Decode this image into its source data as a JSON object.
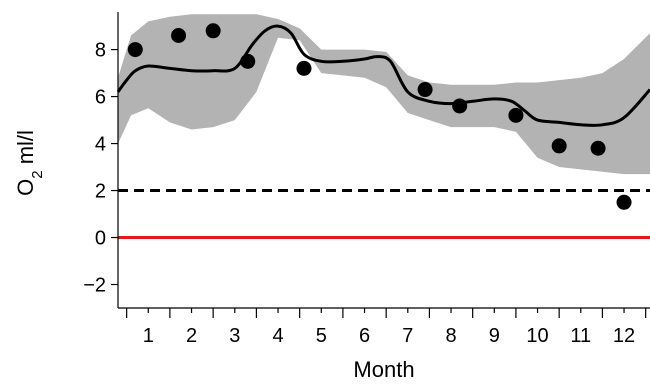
{
  "chart_data": {
    "type": "line",
    "xlabel": "Month",
    "ylabel_main": "O",
    "ylabel_sub": "2",
    "ylabel_rest": " ml/l",
    "xlim": [
      0.3,
      12.6
    ],
    "ylim": [
      -3,
      9.6
    ],
    "x_ticks": [
      1,
      2,
      3,
      4,
      5,
      6,
      7,
      8,
      9,
      10,
      11,
      12
    ],
    "x_tick_labels": [
      "1",
      "2",
      "3",
      "4",
      "5",
      "6",
      "7",
      "8",
      "9",
      "10",
      "11",
      "12"
    ],
    "y_ticks": [
      -2,
      0,
      2,
      4,
      6,
      8
    ],
    "y_tick_labels": [
      "−2",
      "0",
      "2",
      "4",
      "6",
      "8"
    ],
    "grid": false,
    "colors": {
      "band": "#b3b3b3",
      "line": "#000000",
      "points": "#000000",
      "threshold_dashed": "#000000",
      "zero_line": "#e31a1c"
    },
    "band": {
      "x": [
        0.3,
        0.6,
        1.0,
        1.5,
        2.0,
        2.5,
        3.0,
        3.5,
        4.0,
        4.5,
        5.0,
        5.5,
        6.0,
        6.5,
        7.0,
        7.5,
        8.0,
        8.5,
        9.0,
        9.5,
        10.0,
        10.5,
        11.0,
        11.5,
        12.0,
        12.6
      ],
      "upper": [
        6.8,
        8.6,
        9.2,
        9.4,
        9.5,
        9.5,
        9.5,
        9.5,
        9.3,
        8.9,
        8.0,
        8.0,
        8.0,
        7.9,
        6.9,
        6.6,
        6.5,
        6.5,
        6.5,
        6.6,
        6.6,
        6.7,
        6.8,
        7.0,
        7.6,
        8.7
      ],
      "lower": [
        4.0,
        5.2,
        5.5,
        4.9,
        4.6,
        4.7,
        5.0,
        6.2,
        8.5,
        8.4,
        7.0,
        6.9,
        6.8,
        6.4,
        5.3,
        5.0,
        4.7,
        4.7,
        4.7,
        4.5,
        3.4,
        3.0,
        2.9,
        2.8,
        2.7,
        2.7
      ]
    },
    "series": [
      {
        "x": [
          0.3,
          0.5,
          0.7,
          1.0,
          1.5,
          2.0,
          2.5,
          3.0,
          3.4,
          3.7,
          4.0,
          4.3,
          4.6,
          5.0,
          5.5,
          6.0,
          6.3,
          6.6,
          7.0,
          7.5,
          8.0,
          8.5,
          9.0,
          9.4,
          9.7,
          10.0,
          10.5,
          11.0,
          11.5,
          12.0,
          12.6
        ],
        "values": [
          6.2,
          6.7,
          7.1,
          7.3,
          7.2,
          7.1,
          7.1,
          7.2,
          8.2,
          8.8,
          9.0,
          8.7,
          7.8,
          7.5,
          7.5,
          7.6,
          7.7,
          7.5,
          6.2,
          5.8,
          5.7,
          5.8,
          5.9,
          5.8,
          5.4,
          5.0,
          4.9,
          4.8,
          4.8,
          5.1,
          6.3
        ]
      }
    ],
    "points": {
      "x": [
        0.7,
        1.7,
        2.5,
        3.3,
        4.6,
        7.4,
        8.2,
        9.5,
        10.5,
        11.4,
        12.0
      ],
      "y": [
        8.0,
        8.6,
        8.8,
        7.5,
        7.2,
        6.3,
        5.6,
        5.2,
        3.9,
        3.8,
        1.5
      ]
    },
    "reference_lines": [
      {
        "y": 2,
        "style": "dashed",
        "color": "#000000"
      },
      {
        "y": 0,
        "style": "solid",
        "color": "#e31a1c"
      }
    ]
  }
}
